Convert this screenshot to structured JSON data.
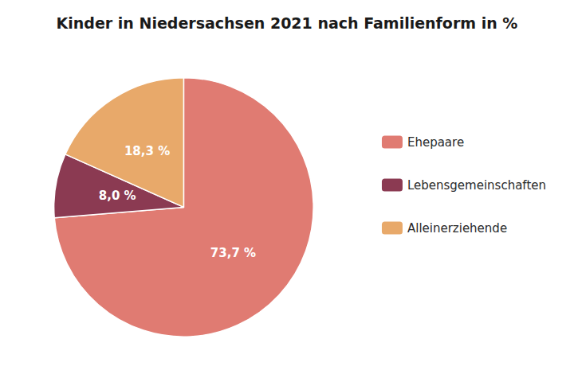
{
  "chart_data": {
    "type": "pie",
    "title": "Kinder in Niedersachsen 2021 nach Familienform in %",
    "categories": [
      "Ehepaare",
      "Lebensgemeinschaften",
      "Alleinerziehende"
    ],
    "values": [
      73.7,
      8.0,
      18.3
    ],
    "value_labels": [
      "73,7 %",
      "8,0 %",
      "18,3 %"
    ],
    "colors": [
      "#E07B72",
      "#8B3A52",
      "#E8A96A"
    ],
    "data_labels": true,
    "legend": "right"
  }
}
